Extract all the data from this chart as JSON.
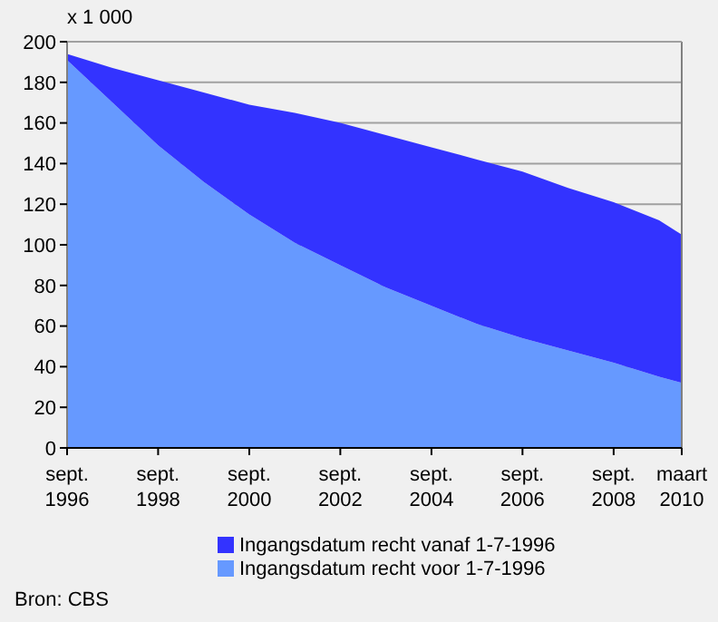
{
  "chart_data": {
    "type": "area",
    "stacked": true,
    "ylabel": "x 1 000",
    "x": [
      "1996-09",
      "1997-09",
      "1998-09",
      "1999-09",
      "2000-09",
      "2001-09",
      "2002-09",
      "2003-09",
      "2004-09",
      "2005-09",
      "2006-09",
      "2007-09",
      "2008-09",
      "2009-09",
      "2010-03"
    ],
    "series": [
      {
        "name": "Ingangsdatum recht voor 1-7-1996",
        "color": "#6699ff",
        "values": [
          191,
          170,
          149,
          131,
          115,
          101,
          90,
          79,
          70,
          61,
          54,
          48,
          42,
          35,
          32
        ]
      },
      {
        "name": "Ingangsdatum recht vanaf 1-7-1996",
        "color": "#3333ff",
        "values": [
          3,
          17,
          32,
          44,
          54,
          64,
          70,
          75,
          78,
          81,
          82,
          80,
          79,
          77,
          73
        ]
      }
    ],
    "xlim": [
      "1996-09",
      "2010-03"
    ],
    "xticks": [
      {
        "value": "1996-09",
        "label": "sept. 1996"
      },
      {
        "value": "1998-09",
        "label": "sept. 1998"
      },
      {
        "value": "2000-09",
        "label": "sept. 2000"
      },
      {
        "value": "2002-09",
        "label": "sept. 2002"
      },
      {
        "value": "2004-09",
        "label": "sept. 2004"
      },
      {
        "value": "2006-09",
        "label": "sept. 2006"
      },
      {
        "value": "2008-09",
        "label": "sept. 2008"
      },
      {
        "value": "2010-03",
        "label": "maart 2010"
      }
    ],
    "ylim": [
      0,
      200
    ],
    "yticks": [
      0,
      20,
      40,
      60,
      80,
      100,
      120,
      140,
      160,
      180,
      200
    ],
    "grid": "y",
    "legend": "bottom",
    "annotations": [
      "Bron: CBS"
    ]
  }
}
